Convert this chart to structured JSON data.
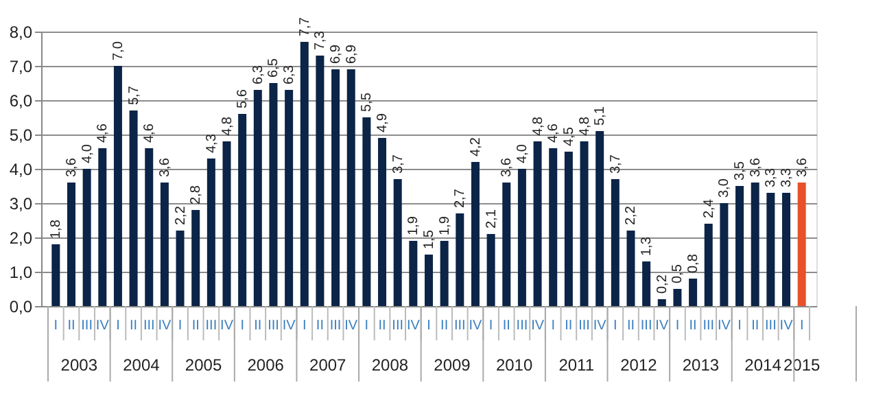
{
  "chart_data": {
    "type": "bar",
    "categories": [
      "I",
      "II",
      "III",
      "IV",
      "I",
      "II",
      "III",
      "IV",
      "I",
      "II",
      "III",
      "IV",
      "I",
      "II",
      "III",
      "IV",
      "I",
      "II",
      "III",
      "IV",
      "I",
      "II",
      "III",
      "IV",
      "I",
      "II",
      "III",
      "IV",
      "I",
      "II",
      "III",
      "IV",
      "I",
      "II",
      "III",
      "IV",
      "I",
      "II",
      "III",
      "IV",
      "I",
      "II",
      "III",
      "IV",
      "I",
      "II",
      "III",
      "IV",
      "I"
    ],
    "values": [
      1.8,
      3.6,
      4.0,
      4.6,
      7.0,
      5.7,
      4.6,
      3.6,
      2.2,
      2.8,
      4.3,
      4.8,
      5.6,
      6.3,
      6.5,
      6.3,
      7.7,
      7.3,
      6.9,
      6.9,
      5.5,
      4.9,
      3.7,
      1.9,
      1.5,
      1.9,
      2.7,
      4.2,
      2.1,
      3.6,
      4.0,
      4.8,
      4.6,
      4.5,
      4.8,
      5.1,
      3.7,
      2.2,
      1.3,
      0.2,
      0.5,
      0.8,
      2.4,
      3.0,
      3.5,
      3.6,
      3.3,
      3.3,
      3.6
    ],
    "value_labels": [
      "1,8",
      "3,6",
      "4,0",
      "4,6",
      "7,0",
      "5,7",
      "4,6",
      "3,6",
      "2,2",
      "2,8",
      "4,3",
      "4,8",
      "5,6",
      "6,3",
      "6,5",
      "6,3",
      "7,7",
      "7,3",
      "6,9",
      "6,9",
      "5,5",
      "4,9",
      "3,7",
      "1,9",
      "1,5",
      "1,9",
      "2,7",
      "4,2",
      "2,1",
      "3,6",
      "4,0",
      "4,8",
      "4,6",
      "4,5",
      "4,8",
      "5,1",
      "3,7",
      "2,2",
      "1,3",
      "0,2",
      "0,5",
      "0,8",
      "2,4",
      "3,0",
      "3,5",
      "3,6",
      "3,3",
      "3,3",
      "3,6"
    ],
    "colors": [
      "#0b2447",
      "#0b2447",
      "#0b2447",
      "#0b2447",
      "#0b2447",
      "#0b2447",
      "#0b2447",
      "#0b2447",
      "#0b2447",
      "#0b2447",
      "#0b2447",
      "#0b2447",
      "#0b2447",
      "#0b2447",
      "#0b2447",
      "#0b2447",
      "#0b2447",
      "#0b2447",
      "#0b2447",
      "#0b2447",
      "#0b2447",
      "#0b2447",
      "#0b2447",
      "#0b2447",
      "#0b2447",
      "#0b2447",
      "#0b2447",
      "#0b2447",
      "#0b2447",
      "#0b2447",
      "#0b2447",
      "#0b2447",
      "#0b2447",
      "#0b2447",
      "#0b2447",
      "#0b2447",
      "#0b2447",
      "#0b2447",
      "#0b2447",
      "#0b2447",
      "#0b2447",
      "#0b2447",
      "#0b2447",
      "#0b2447",
      "#0b2447",
      "#0b2447",
      "#0b2447",
      "#0b2447",
      "#e8512a"
    ],
    "annotations": [
      "2003",
      "2004",
      "2005",
      "2006",
      "2007",
      "2008",
      "2009",
      "2010",
      "2011",
      "2012",
      "2013",
      "2014",
      "2015"
    ],
    "ylim": [
      0,
      8
    ],
    "yticks": [
      {
        "value": 0,
        "label": "0,0"
      },
      {
        "value": 1,
        "label": "1,0"
      },
      {
        "value": 2,
        "label": "2,0"
      },
      {
        "value": 3,
        "label": "3,0"
      },
      {
        "value": 4,
        "label": "4,0"
      },
      {
        "value": 5,
        "label": "5,0"
      },
      {
        "value": 6,
        "label": "6,0"
      },
      {
        "value": 7,
        "label": "7,0"
      },
      {
        "value": 8,
        "label": "8,0"
      }
    ],
    "grid": "y",
    "data_labels": true,
    "legend": false
  }
}
